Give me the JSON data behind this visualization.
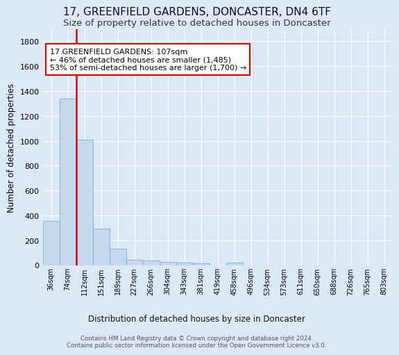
{
  "title1": "17, GREENFIELD GARDENS, DONCASTER, DN4 6TF",
  "title2": "Size of property relative to detached houses in Doncaster",
  "xlabel": "Distribution of detached houses by size in Doncaster",
  "ylabel": "Number of detached properties",
  "bar_labels": [
    "36sqm",
    "74sqm",
    "112sqm",
    "151sqm",
    "189sqm",
    "227sqm",
    "266sqm",
    "304sqm",
    "343sqm",
    "381sqm",
    "419sqm",
    "458sqm",
    "496sqm",
    "534sqm",
    "573sqm",
    "611sqm",
    "650sqm",
    "688sqm",
    "726sqm",
    "765sqm",
    "803sqm"
  ],
  "bar_values": [
    355,
    1340,
    1010,
    295,
    130,
    42,
    38,
    28,
    18,
    15,
    0,
    18,
    0,
    0,
    0,
    0,
    0,
    0,
    0,
    0,
    0
  ],
  "bar_color": "#c5d8ee",
  "bar_edge_color": "#7aadd4",
  "annotation_text": "17 GREENFIELD GARDENS: 107sqm\n← 46% of detached houses are smaller (1,485)\n53% of semi-detached houses are larger (1,700) →",
  "annotation_box_color": "#ffffff",
  "annotation_border_color": "#cc0000",
  "ylim": [
    0,
    1900
  ],
  "yticks": [
    0,
    200,
    400,
    600,
    800,
    1000,
    1200,
    1400,
    1600,
    1800
  ],
  "background_color": "#dce8f5",
  "grid_color": "#ffffff",
  "footer_text": "Contains HM Land Registry data © Crown copyright and database right 2024.\nContains public sector information licensed under the Open Government Licence v3.0.",
  "red_line_color": "#cc0000",
  "title1_fontsize": 11,
  "title2_fontsize": 9.5
}
